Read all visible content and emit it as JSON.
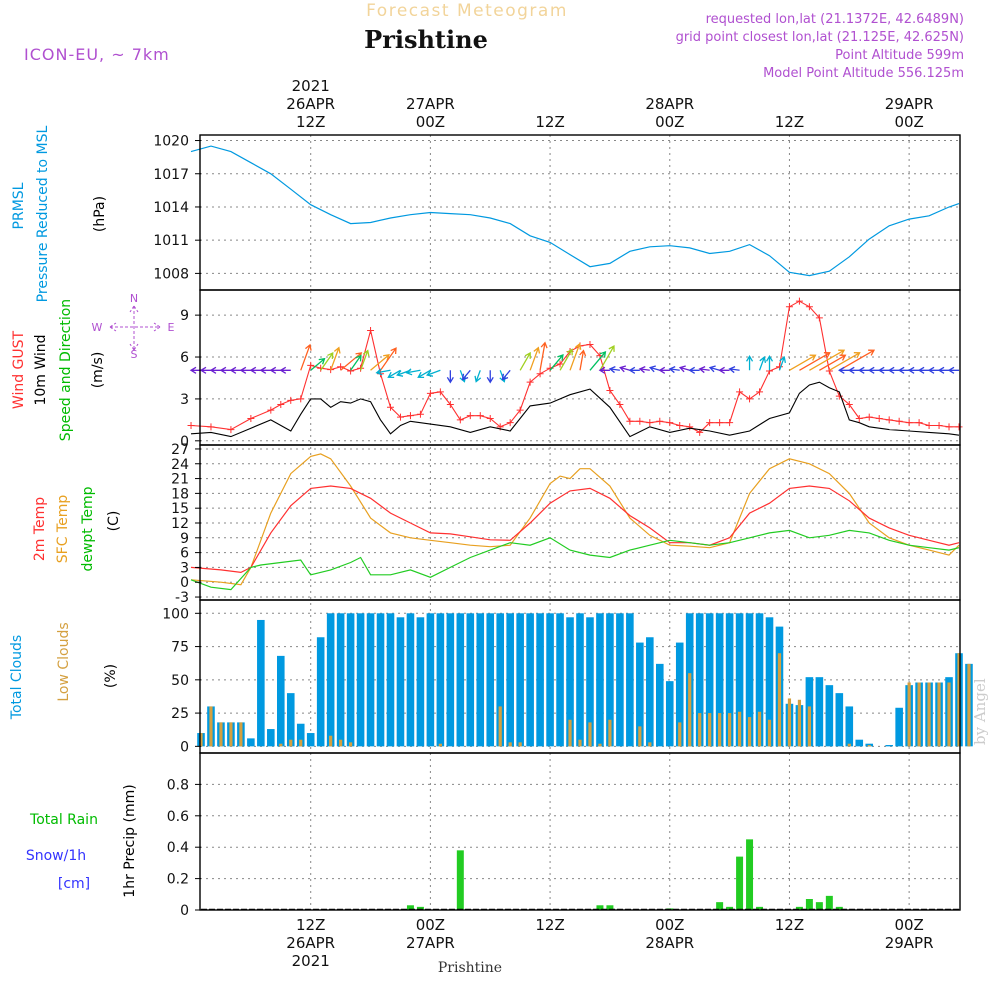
{
  "header": {
    "title_small": "Forecast Meteogram",
    "location": "Prishtine",
    "model": "ICON-EU, ~ 7km",
    "requested": "requested lon,lat (21.1372E, 42.6489N)",
    "gridpoint": "grid point closest lon,lat (21.125E, 42.625N)",
    "point_alt": "Point Altitude 599m",
    "model_alt": "Model Point Altitude 556.125m",
    "footer_location": "Prishtine",
    "watermark": "by Angel"
  },
  "time_axis": [
    {
      "hour": 12,
      "top": [
        "2021",
        "26APR",
        "12Z"
      ],
      "bottom": [
        "12Z",
        "26APR",
        "2021"
      ]
    },
    {
      "hour": 24,
      "top": [
        "27APR",
        "00Z"
      ],
      "bottom": [
        "00Z",
        "27APR"
      ]
    },
    {
      "hour": 36,
      "top": [
        "12Z"
      ],
      "bottom": [
        "12Z"
      ]
    },
    {
      "hour": 48,
      "top": [
        "28APR",
        "00Z"
      ],
      "bottom": [
        "00Z",
        "28APR"
      ]
    },
    {
      "hour": 60,
      "top": [
        "12Z"
      ],
      "bottom": [
        "12Z"
      ]
    },
    {
      "hour": 72,
      "top": [
        "29APR",
        "00Z"
      ],
      "bottom": [
        "00Z",
        "29APR"
      ]
    }
  ],
  "panels": {
    "pressure": {
      "labels": [
        {
          "text": "PRMSL",
          "color": "#0099e0"
        },
        {
          "text": "Pressure Reduced to MSL",
          "color": "#0099e0"
        },
        {
          "text": "(hPa)",
          "color": "#000000"
        }
      ],
      "ticks": [
        1008,
        1011,
        1014,
        1017,
        1020
      ],
      "ylim": [
        1006.5,
        1020.5
      ]
    },
    "wind": {
      "labels": [
        {
          "text": "Wind GUST",
          "color": "#ff3030"
        },
        {
          "text": "10m Wind",
          "color": "#000000"
        },
        {
          "text": "Speed and Direction",
          "color": "#00bb00"
        },
        {
          "text": "(m/s)",
          "color": "#000000"
        }
      ],
      "ticks": [
        0,
        3,
        6,
        9
      ],
      "ylim": [
        -0.3,
        10.8
      ],
      "compass": {
        "n": "N",
        "s": "S",
        "w": "W",
        "e": "E"
      }
    },
    "temp": {
      "labels": [
        {
          "text": "2m Temp",
          "color": "#ff3030"
        },
        {
          "text": "SFC Temp",
          "color": "#e8a020"
        },
        {
          "text": "dewpt Temp",
          "color": "#00bb00"
        },
        {
          "text": "(C)",
          "color": "#000000"
        }
      ],
      "ticks": [
        -3,
        0,
        3,
        6,
        9,
        12,
        15,
        18,
        21,
        24,
        27
      ],
      "ylim": [
        -3.6,
        27.8
      ]
    },
    "clouds": {
      "labels": [
        {
          "text": "Total Clouds",
          "color": "#0099e0"
        },
        {
          "text": "Low Clouds",
          "color": "#d4a040"
        },
        {
          "text": "(%)",
          "color": "#000000"
        }
      ],
      "ticks": [
        0,
        25,
        50,
        75,
        100
      ],
      "ylim": [
        -5,
        110
      ]
    },
    "precip": {
      "labels": [
        {
          "text": "Total  Rain",
          "color": "#00bb00"
        },
        {
          "text": "Snow/1h",
          "color": "#3333ff"
        },
        {
          "text": "[cm]",
          "color": "#3333ff"
        },
        {
          "text": "1hr Precip (mm)",
          "color": "#000000"
        }
      ],
      "ticks": [
        "0",
        "0.2",
        "0.4",
        "0.6",
        "0.8"
      ],
      "ylim": [
        0,
        1.0
      ]
    }
  },
  "chart_data": [
    {
      "type": "line",
      "title": "PRMSL Pressure Reduced to MSL",
      "ylabel": "(hPa)",
      "x_unit": "hours from 26APR 00Z",
      "series": [
        {
          "name": "PRMSL",
          "color": "#0099e0",
          "x": [
            0,
            2,
            4,
            6,
            8,
            10,
            12,
            14,
            16,
            18,
            20,
            22,
            24,
            26,
            28,
            30,
            32,
            34,
            36,
            38,
            40,
            42,
            44,
            46,
            48,
            50,
            52,
            54,
            56,
            58,
            60,
            62,
            64,
            66,
            68,
            70,
            72,
            74,
            76,
            77
          ],
          "values": [
            1019.0,
            1019.5,
            1019.0,
            1018.0,
            1017.0,
            1015.6,
            1014.2,
            1013.3,
            1012.5,
            1012.6,
            1013.0,
            1013.3,
            1013.5,
            1013.4,
            1013.3,
            1013.0,
            1012.5,
            1011.4,
            1010.8,
            1009.7,
            1008.6,
            1008.9,
            1010.0,
            1010.4,
            1010.5,
            1010.3,
            1009.8,
            1010.0,
            1010.6,
            1009.6,
            1008.1,
            1007.8,
            1008.2,
            1009.5,
            1011.1,
            1012.3,
            1012.9,
            1013.2,
            1014.0,
            1014.3
          ]
        }
      ]
    },
    {
      "type": "line",
      "title": "Wind GUST / 10m Wind Speed and Direction",
      "ylabel": "(m/s)",
      "x_unit": "hours from 26APR 00Z",
      "series": [
        {
          "name": "Wind GUST",
          "color": "#ff3030",
          "x": [
            0,
            2,
            4,
            6,
            8,
            9,
            10,
            11,
            12,
            13,
            14,
            15,
            16,
            17,
            18,
            19,
            20,
            21,
            22,
            23,
            24,
            25,
            26,
            27,
            28,
            29,
            30,
            31,
            32,
            33,
            34,
            35,
            36,
            37,
            38,
            39,
            40,
            41,
            42,
            43,
            44,
            45,
            46,
            47,
            48,
            49,
            50,
            51,
            52,
            53,
            54,
            55,
            56,
            57,
            58,
            59,
            60,
            61,
            62,
            63,
            64,
            65,
            66,
            67,
            68,
            69,
            70,
            71,
            72,
            73,
            74,
            75,
            76,
            77
          ],
          "values": [
            1.1,
            1.0,
            0.8,
            1.6,
            2.2,
            2.6,
            2.9,
            3.0,
            5.4,
            5.2,
            5.1,
            5.3,
            5.0,
            5.2,
            7.9,
            4.8,
            2.4,
            1.7,
            1.8,
            1.9,
            3.4,
            3.5,
            2.6,
            1.5,
            1.8,
            1.8,
            1.6,
            1.0,
            1.3,
            2.2,
            4.2,
            4.8,
            5.2,
            5.5,
            6.4,
            6.8,
            6.9,
            6.1,
            3.6,
            2.6,
            1.4,
            1.4,
            1.3,
            1.4,
            1.3,
            1.1,
            1.0,
            0.6,
            1.3,
            1.3,
            1.3,
            3.5,
            3.0,
            3.5,
            5.0,
            5.3,
            9.6,
            10.0,
            9.6,
            8.8,
            5.0,
            3.2,
            2.6,
            1.6,
            1.7,
            1.6,
            1.5,
            1.4,
            1.3,
            1.3,
            1.1,
            1.1,
            1.0,
            1.0
          ]
        },
        {
          "name": "10m Wind",
          "color": "#000000",
          "x": [
            0,
            2,
            4,
            6,
            8,
            10,
            11,
            12,
            13,
            14,
            15,
            16,
            17,
            18,
            19,
            20,
            21,
            22,
            24,
            26,
            28,
            30,
            32,
            34,
            36,
            38,
            40,
            42,
            44,
            46,
            48,
            50,
            52,
            54,
            56,
            58,
            60,
            61,
            62,
            63,
            64,
            65,
            66,
            67,
            68,
            70,
            72,
            74,
            76,
            77
          ],
          "values": [
            0.5,
            0.6,
            0.3,
            0.9,
            1.5,
            0.7,
            1.9,
            3.0,
            3.0,
            2.4,
            2.8,
            2.7,
            3.0,
            2.8,
            1.5,
            0.5,
            1.1,
            1.4,
            1.2,
            1.0,
            0.6,
            1.0,
            0.7,
            2.5,
            2.7,
            3.3,
            3.7,
            2.4,
            0.3,
            1.0,
            0.6,
            0.9,
            0.7,
            0.4,
            0.7,
            1.6,
            2.0,
            3.4,
            4.0,
            4.2,
            3.8,
            3.5,
            1.5,
            1.3,
            1.0,
            0.8,
            0.7,
            0.6,
            0.5,
            0.4
          ]
        }
      ],
      "arrows_count": 77
    },
    {
      "type": "line",
      "title": "2m Temp / SFC Temp / dewpt Temp",
      "ylabel": "(C)",
      "x_unit": "hours from 26APR 00Z",
      "series": [
        {
          "name": "2m Temp",
          "color": "#ff3030",
          "x": [
            0,
            3,
            5,
            6,
            8,
            10,
            12,
            14,
            16,
            18,
            20,
            22,
            24,
            26,
            28,
            30,
            32,
            34,
            36,
            38,
            40,
            42,
            44,
            46,
            48,
            50,
            52,
            54,
            56,
            58,
            60,
            62,
            64,
            66,
            68,
            70,
            72,
            74,
            76,
            77
          ],
          "values": [
            3.0,
            2.5,
            2.0,
            3.0,
            10.0,
            15.5,
            19.0,
            19.5,
            19.0,
            17.0,
            14.0,
            12.0,
            10.0,
            9.8,
            9.2,
            8.6,
            8.5,
            12.0,
            16.0,
            18.5,
            19.0,
            17.0,
            13.5,
            11.0,
            8.0,
            8.0,
            7.5,
            9.0,
            14.0,
            16.0,
            19.0,
            19.5,
            19.0,
            16.5,
            13.0,
            11.0,
            9.5,
            8.5,
            7.5,
            8.0
          ]
        },
        {
          "name": "SFC Temp",
          "color": "#e8a020",
          "x": [
            0,
            3,
            5,
            6,
            8,
            10,
            12,
            13,
            14,
            16,
            18,
            20,
            22,
            24,
            26,
            28,
            30,
            32,
            34,
            36,
            37,
            38,
            39,
            40,
            42,
            44,
            46,
            48,
            50,
            52,
            54,
            56,
            58,
            60,
            62,
            64,
            66,
            68,
            70,
            72,
            74,
            76,
            77
          ],
          "values": [
            0.5,
            0.0,
            -0.5,
            3.0,
            14.0,
            22.0,
            25.5,
            26.0,
            25.0,
            19.5,
            13.0,
            10.0,
            9.0,
            8.5,
            8.0,
            7.5,
            7.2,
            7.5,
            13.0,
            20.0,
            21.5,
            21.0,
            23.0,
            23.0,
            19.5,
            13.0,
            9.5,
            7.5,
            7.3,
            7.0,
            8.0,
            18.0,
            23.0,
            25.0,
            24.0,
            22.0,
            18.0,
            12.0,
            9.0,
            7.5,
            6.5,
            5.5,
            7.5
          ]
        },
        {
          "name": "dewpt Temp",
          "color": "#22cc22",
          "x": [
            0,
            2,
            4,
            6,
            7,
            9,
            11,
            12,
            14,
            16,
            17,
            18,
            20,
            22,
            24,
            26,
            28,
            30,
            32,
            34,
            36,
            38,
            40,
            42,
            44,
            46,
            48,
            50,
            52,
            54,
            56,
            58,
            60,
            62,
            64,
            66,
            68,
            70,
            72,
            74,
            76,
            77
          ],
          "values": [
            0.5,
            -1.0,
            -1.5,
            3.0,
            3.5,
            4.0,
            4.5,
            1.5,
            2.5,
            4.0,
            5.0,
            1.5,
            1.5,
            2.5,
            1.0,
            3.0,
            5.0,
            6.5,
            8.0,
            7.5,
            9.0,
            6.5,
            5.5,
            5.0,
            6.5,
            7.5,
            8.5,
            8.0,
            7.5,
            8.0,
            9.0,
            10.0,
            10.5,
            9.0,
            9.5,
            10.5,
            10.0,
            8.5,
            7.5,
            7.0,
            6.5,
            7.0
          ]
        }
      ]
    },
    {
      "type": "bar",
      "title": "Total Clouds / Low Clouds",
      "ylabel": "(%)",
      "x_unit": "hours from 26APR 00Z",
      "series": [
        {
          "name": "Total Clouds",
          "color": "#0099e0",
          "values": [
            10,
            30,
            18,
            18,
            18,
            6,
            95,
            13,
            68,
            40,
            17,
            10,
            82,
            100,
            100,
            100,
            100,
            100,
            100,
            100,
            97,
            100,
            97,
            100,
            100,
            100,
            100,
            100,
            100,
            100,
            100,
            100,
            100,
            100,
            100,
            100,
            100,
            97,
            100,
            97,
            100,
            100,
            100,
            100,
            78,
            82,
            62,
            49,
            78,
            100,
            100,
            100,
            100,
            100,
            100,
            100,
            100,
            97,
            90,
            32,
            31,
            52,
            52,
            46,
            40,
            30,
            5,
            2,
            0,
            1,
            29,
            46,
            48,
            48,
            48,
            52,
            70,
            62
          ]
        },
        {
          "name": "Low Clouds",
          "color": "#d4a040",
          "values": [
            10,
            30,
            18,
            18,
            18,
            0,
            0,
            0,
            2,
            5,
            5,
            0,
            0,
            8,
            5,
            3,
            0,
            0,
            0,
            0,
            0,
            0,
            0,
            0,
            2,
            0,
            0,
            0,
            0,
            0,
            30,
            3,
            3,
            0,
            0,
            0,
            0,
            20,
            5,
            18,
            2,
            20,
            0,
            0,
            15,
            3,
            0,
            0,
            18,
            55,
            25,
            25,
            25,
            25,
            26,
            22,
            26,
            20,
            70,
            36,
            35,
            30,
            0,
            0,
            0,
            2,
            0,
            1,
            0,
            0,
            0,
            48,
            48,
            48,
            48,
            48,
            70,
            62
          ]
        }
      ]
    },
    {
      "type": "bar",
      "title": "1hr Precip (mm)",
      "ylabel": "1hr Precip (mm)",
      "x_unit": "hours from 26APR 00Z",
      "series": [
        {
          "name": "Total Rain",
          "color": "#22cc22",
          "x": [
            22,
            23,
            27,
            41,
            42,
            48,
            53,
            54,
            55,
            56,
            57,
            61,
            62,
            63,
            64,
            65
          ],
          "values": [
            0.03,
            0.02,
            0.38,
            0.03,
            0.03,
            0.01,
            0.05,
            0.02,
            0.34,
            0.45,
            0.02,
            0.02,
            0.07,
            0.05,
            0.09,
            0.02
          ]
        }
      ]
    }
  ]
}
